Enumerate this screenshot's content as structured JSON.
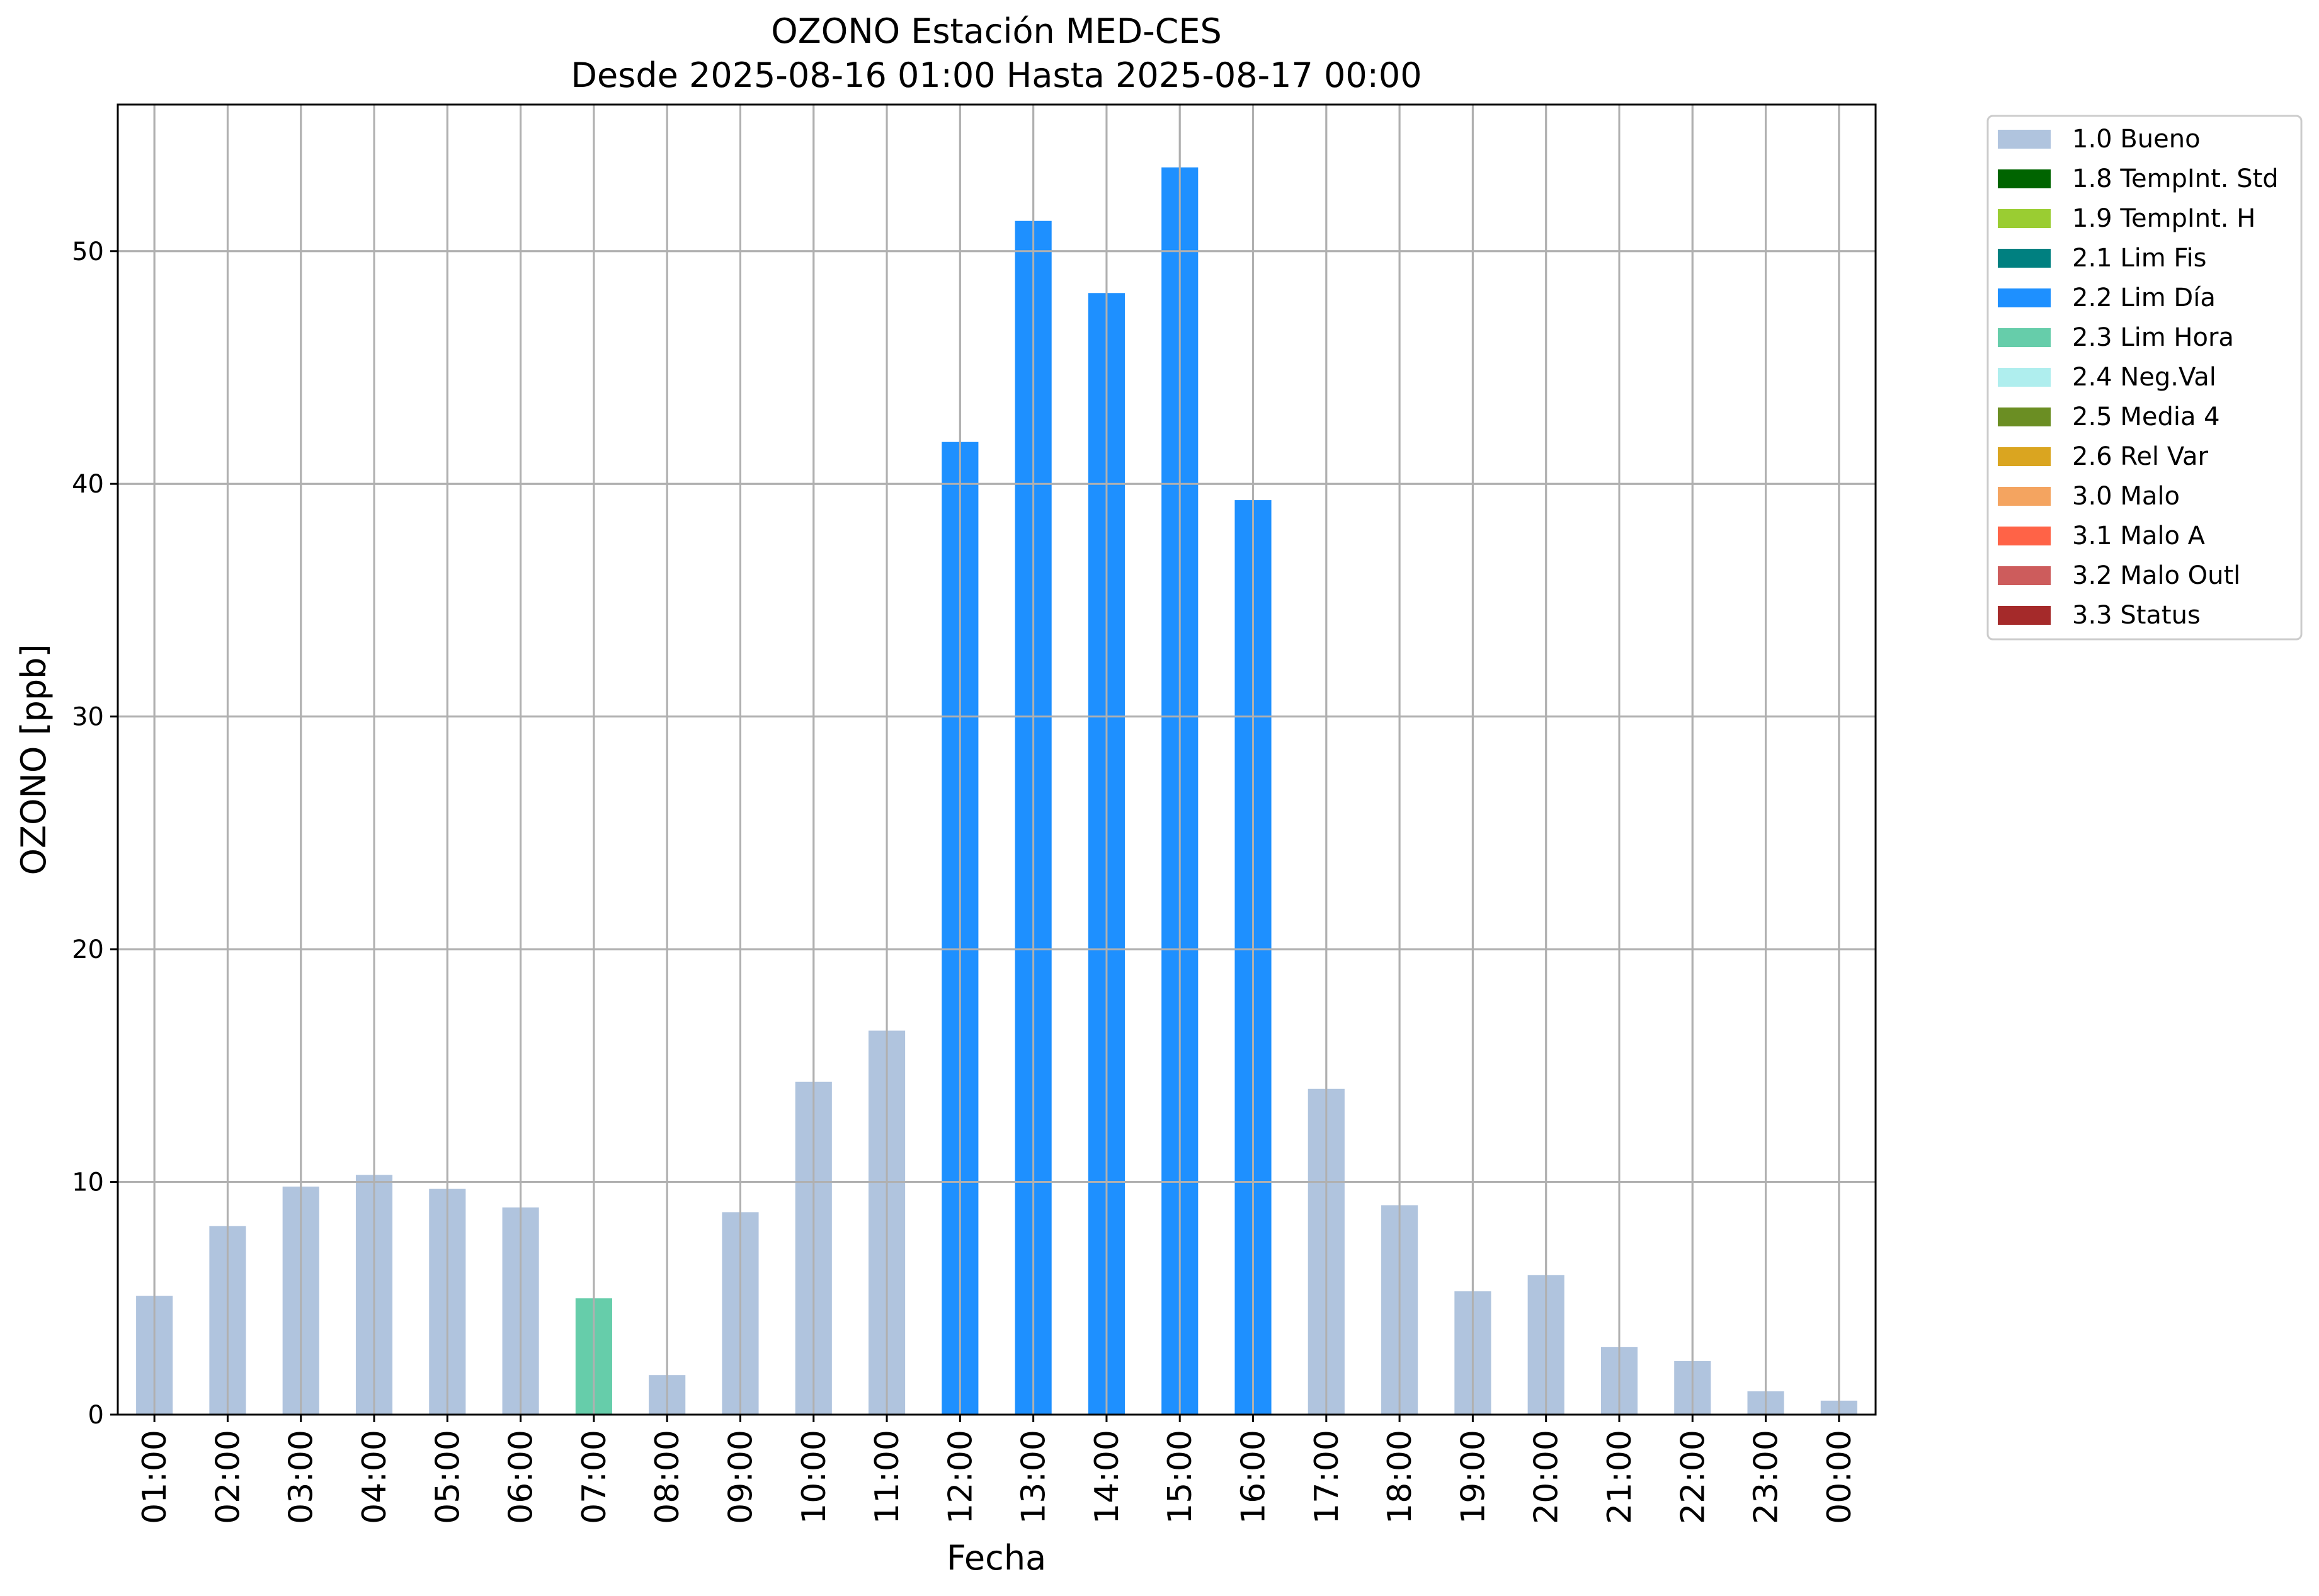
{
  "chart_data": {
    "type": "bar",
    "title": "OZONO Estación MED-CES",
    "subtitle": "Desde 2025-08-16 01:00 Hasta 2025-08-17 00:00",
    "xlabel": "Fecha",
    "ylabel": "OZONO [ppb]",
    "ylim": [
      0,
      56.3
    ],
    "yticks": [
      0,
      10,
      20,
      30,
      40,
      50
    ],
    "grid": true,
    "legend_position": "outside-top-right",
    "categories": [
      "01:00",
      "02:00",
      "03:00",
      "04:00",
      "05:00",
      "06:00",
      "07:00",
      "08:00",
      "09:00",
      "10:00",
      "11:00",
      "12:00",
      "13:00",
      "14:00",
      "15:00",
      "16:00",
      "17:00",
      "18:00",
      "19:00",
      "20:00",
      "21:00",
      "22:00",
      "23:00",
      "00:00"
    ],
    "values": [
      5.1,
      8.1,
      9.8,
      10.3,
      9.7,
      8.9,
      5.0,
      1.7,
      8.7,
      14.3,
      16.5,
      41.8,
      51.3,
      48.2,
      53.6,
      39.3,
      14.0,
      9.0,
      5.3,
      6.0,
      2.9,
      2.3,
      1.0,
      0.6
    ],
    "flags": [
      "1.0 Bueno",
      "1.0 Bueno",
      "1.0 Bueno",
      "1.0 Bueno",
      "1.0 Bueno",
      "1.0 Bueno",
      "2.3 Lim Hora",
      "1.0 Bueno",
      "1.0 Bueno",
      "1.0 Bueno",
      "1.0 Bueno",
      "2.2 Lim Día",
      "2.2 Lim Día",
      "2.2 Lim Día",
      "2.2 Lim Día",
      "2.2 Lim Día",
      "1.0 Bueno",
      "1.0 Bueno",
      "1.0 Bueno",
      "1.0 Bueno",
      "1.0 Bueno",
      "1.0 Bueno",
      "1.0 Bueno",
      "1.0 Bueno"
    ],
    "legend": [
      {
        "label": "1.0 Bueno",
        "color": "#b0c4de"
      },
      {
        "label": "1.8 TempInt. Std",
        "color": "#006400"
      },
      {
        "label": "1.9 TempInt. H",
        "color": "#9acd32"
      },
      {
        "label": "2.1 Lim Fis",
        "color": "#008080"
      },
      {
        "label": "2.2 Lim Día",
        "color": "#1e90ff"
      },
      {
        "label": "2.3 Lim Hora",
        "color": "#66cdaa"
      },
      {
        "label": "2.4 Neg.Val",
        "color": "#afeeee"
      },
      {
        "label": "2.5 Media 4",
        "color": "#6b8e23"
      },
      {
        "label": "2.6 Rel Var",
        "color": "#daa520"
      },
      {
        "label": "3.0 Malo",
        "color": "#f4a460"
      },
      {
        "label": "3.1 Malo A",
        "color": "#ff6347"
      },
      {
        "label": "3.2 Malo Outl",
        "color": "#cd5c5c"
      },
      {
        "label": "3.3 Status",
        "color": "#a52a2a"
      }
    ]
  }
}
